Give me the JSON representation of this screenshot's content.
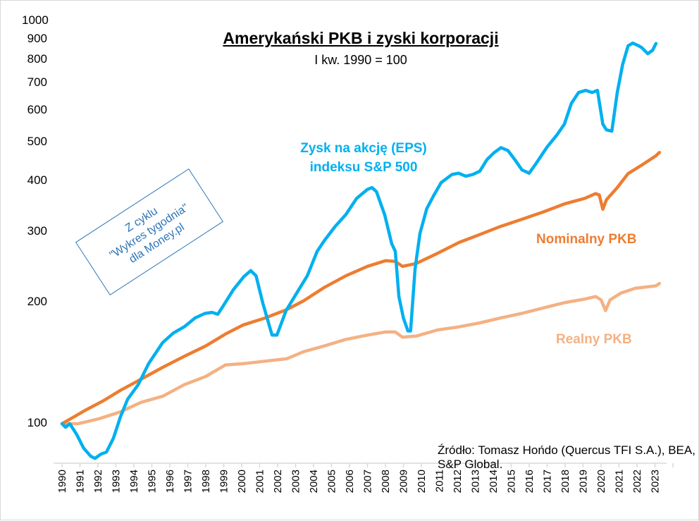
{
  "chart_data": {
    "type": "line",
    "title": "Amerykański PKB i zyski korporacji",
    "subtitle": "I kw. 1990 = 100",
    "source": "Źródło: Tomasz Hońdo (Quercus TFI S.A.), BEA, S&P Global.",
    "stamp": [
      "Z cyklu",
      "\"Wykres tygodnia\"",
      "dla Money.pl"
    ],
    "yscale": "log",
    "ylim": [
      80,
      1000
    ],
    "xlim": [
      1990,
      2024.4
    ],
    "grid": false,
    "yticks": [
      100,
      200,
      300,
      400,
      500,
      600,
      700,
      800,
      900,
      1000
    ],
    "xticks": [
      "1990",
      "1991",
      "1992",
      "1993",
      "1994",
      "1995",
      "1996",
      "1997",
      "1998",
      "1999",
      "2000",
      "2001",
      "2002",
      "2003",
      "2004",
      "2005",
      "2006",
      "2007",
      "2008",
      "2009",
      "2010",
      "2011",
      "2012",
      "2013",
      "2014",
      "2015",
      "2016",
      "2017",
      "2018",
      "2019",
      "2020",
      "2021",
      "2022",
      "2023"
    ],
    "series": [
      {
        "name": "Zysk na akcję (EPS) indeksu S&P 500",
        "label_lines": [
          "Zysk na akcję (EPS)",
          "indeksu S&P 500"
        ],
        "color": "#00B0F0",
        "points": [
          [
            1990.0,
            100
          ],
          [
            1990.2,
            98
          ],
          [
            1990.43,
            100
          ],
          [
            1990.82,
            94
          ],
          [
            1991.2,
            87
          ],
          [
            1991.6,
            83
          ],
          [
            1991.84,
            82
          ],
          [
            1992.16,
            84
          ],
          [
            1992.47,
            85
          ],
          [
            1992.86,
            92
          ],
          [
            1993.25,
            104
          ],
          [
            1993.65,
            115
          ],
          [
            1994.24,
            125
          ],
          [
            1994.82,
            141
          ],
          [
            1995.6,
            159
          ],
          [
            1996.2,
            168
          ],
          [
            1996.8,
            174
          ],
          [
            1997.4,
            183
          ],
          [
            1997.96,
            188
          ],
          [
            1998.35,
            189
          ],
          [
            1998.67,
            187
          ],
          [
            1999.06,
            199
          ],
          [
            1999.53,
            215
          ],
          [
            2000.12,
            232
          ],
          [
            2000.5,
            240
          ],
          [
            2000.8,
            233
          ],
          [
            2001.18,
            199
          ],
          [
            2001.69,
            166
          ],
          [
            2001.96,
            166
          ],
          [
            2002.47,
            191
          ],
          [
            2003.06,
            211
          ],
          [
            2003.65,
            233
          ],
          [
            2004.2,
            268
          ],
          [
            2004.6,
            285
          ],
          [
            2005.2,
            309
          ],
          [
            2005.8,
            331
          ],
          [
            2006.4,
            363
          ],
          [
            2007.0,
            382
          ],
          [
            2007.25,
            386
          ],
          [
            2007.5,
            377
          ],
          [
            2007.96,
            330
          ],
          [
            2008.35,
            280
          ],
          [
            2008.55,
            268
          ],
          [
            2008.75,
            207
          ],
          [
            2009.0,
            183
          ],
          [
            2009.25,
            170
          ],
          [
            2009.4,
            170
          ],
          [
            2009.65,
            243
          ],
          [
            2009.92,
            297
          ],
          [
            2010.3,
            342
          ],
          [
            2010.7,
            370
          ],
          [
            2011.1,
            397
          ],
          [
            2011.7,
            416
          ],
          [
            2012.07,
            419
          ],
          [
            2012.47,
            412
          ],
          [
            2012.86,
            416
          ],
          [
            2013.25,
            424
          ],
          [
            2013.65,
            453
          ],
          [
            2014.04,
            471
          ],
          [
            2014.43,
            485
          ],
          [
            2014.82,
            477
          ],
          [
            2015.2,
            453
          ],
          [
            2015.6,
            427
          ],
          [
            2016.0,
            419
          ],
          [
            2016.4,
            444
          ],
          [
            2017.0,
            487
          ],
          [
            2017.55,
            522
          ],
          [
            2017.96,
            555
          ],
          [
            2018.35,
            625
          ],
          [
            2018.75,
            665
          ],
          [
            2019.14,
            673
          ],
          [
            2019.5,
            665
          ],
          [
            2019.8,
            673
          ],
          [
            2020.1,
            555
          ],
          [
            2020.3,
            537
          ],
          [
            2020.6,
            533
          ],
          [
            2020.9,
            665
          ],
          [
            2021.2,
            780
          ],
          [
            2021.5,
            868
          ],
          [
            2021.76,
            882
          ],
          [
            2022.1,
            868
          ],
          [
            2022.27,
            859
          ],
          [
            2022.6,
            830
          ],
          [
            2022.86,
            846
          ],
          [
            2023.06,
            880
          ]
        ]
      },
      {
        "name": "Nominalny PKB",
        "color": "#ED7D31",
        "points": [
          [
            1990.0,
            100
          ],
          [
            1990.5,
            103
          ],
          [
            1991.3,
            108
          ],
          [
            1992.3,
            114
          ],
          [
            1993.25,
            121
          ],
          [
            1994.4,
            129
          ],
          [
            1995.6,
            138
          ],
          [
            1996.8,
            147
          ],
          [
            1998.0,
            156
          ],
          [
            1999.1,
            167
          ],
          [
            2000.1,
            176
          ],
          [
            2001.3,
            183
          ],
          [
            2002.5,
            192
          ],
          [
            2003.45,
            202
          ],
          [
            2004.6,
            218
          ],
          [
            2005.8,
            233
          ],
          [
            2007.0,
            246
          ],
          [
            2008.0,
            254
          ],
          [
            2008.55,
            253
          ],
          [
            2008.95,
            246
          ],
          [
            2009.7,
            250
          ],
          [
            2010.9,
            265
          ],
          [
            2012.1,
            282
          ],
          [
            2013.25,
            295
          ],
          [
            2014.4,
            309
          ],
          [
            2015.6,
            322
          ],
          [
            2016.8,
            336
          ],
          [
            2018.0,
            352
          ],
          [
            2019.1,
            363
          ],
          [
            2019.7,
            373
          ],
          [
            2019.9,
            370
          ],
          [
            2020.1,
            341
          ],
          [
            2020.3,
            360
          ],
          [
            2020.9,
            386
          ],
          [
            2021.5,
            418
          ],
          [
            2022.3,
            440
          ],
          [
            2023.05,
            463
          ],
          [
            2023.25,
            472
          ]
        ]
      },
      {
        "name": "Realny PKB",
        "color": "#F4B183",
        "points": [
          [
            1990.0,
            100
          ],
          [
            1990.9,
            100
          ],
          [
            1992.1,
            103
          ],
          [
            1993.25,
            107
          ],
          [
            1994.4,
            113
          ],
          [
            1995.6,
            117
          ],
          [
            1996.8,
            125
          ],
          [
            1998.0,
            131
          ],
          [
            1999.1,
            140
          ],
          [
            2000.1,
            141
          ],
          [
            2001.3,
            143
          ],
          [
            2002.5,
            145
          ],
          [
            2003.45,
            151
          ],
          [
            2004.6,
            156
          ],
          [
            2005.8,
            162
          ],
          [
            2007.0,
            166
          ],
          [
            2008.0,
            169
          ],
          [
            2008.55,
            169
          ],
          [
            2008.95,
            164
          ],
          [
            2009.7,
            165
          ],
          [
            2010.9,
            171
          ],
          [
            2012.1,
            174
          ],
          [
            2013.25,
            178
          ],
          [
            2014.4,
            183
          ],
          [
            2015.6,
            188
          ],
          [
            2016.8,
            194
          ],
          [
            2018.0,
            200
          ],
          [
            2019.1,
            204
          ],
          [
            2019.7,
            207
          ],
          [
            2020.0,
            203
          ],
          [
            2020.25,
            191
          ],
          [
            2020.5,
            203
          ],
          [
            2021.1,
            211
          ],
          [
            2021.9,
            217
          ],
          [
            2023.05,
            220
          ],
          [
            2023.25,
            223
          ]
        ]
      }
    ]
  }
}
